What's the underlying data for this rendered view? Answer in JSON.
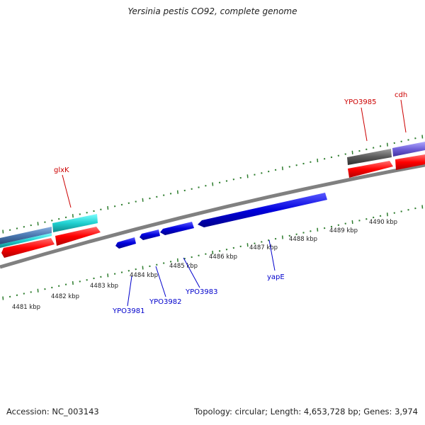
{
  "title": "Yersinia pestis CO92, complete genome",
  "footer": {
    "accession": "Accession: NC_003143",
    "summary": "Topology: circular; Length: 4,653,728 bp; Genes: 3,974"
  },
  "colors": {
    "backbone": "#808080",
    "tick": "#2e7d2e",
    "forward_label": "#cc0000",
    "reverse_label": "#0000cc",
    "cds_forward": "#ff0000",
    "cds_reverse": "#0000e0",
    "cyan_feature": "#1fcfcf",
    "steel_feature": "#4a7ab5",
    "gray_feature": "#5a5a5a",
    "purple_feature": "#7060d0"
  },
  "scale": {
    "unit": "kbp",
    "tick_labels": [
      "4481 kbp",
      "4482 kbp",
      "4483 kbp",
      "4484 kbp",
      "4485 kbp",
      "4486 kbp",
      "4487 kbp",
      "4488 kbp",
      "4489 kbp",
      "4490 kbp"
    ]
  },
  "gene_labels": {
    "forward": [
      "glxK",
      "YPO3985",
      "cdh"
    ],
    "reverse": [
      "YPO3981",
      "YPO3982",
      "YPO3983",
      "yapE"
    ]
  }
}
